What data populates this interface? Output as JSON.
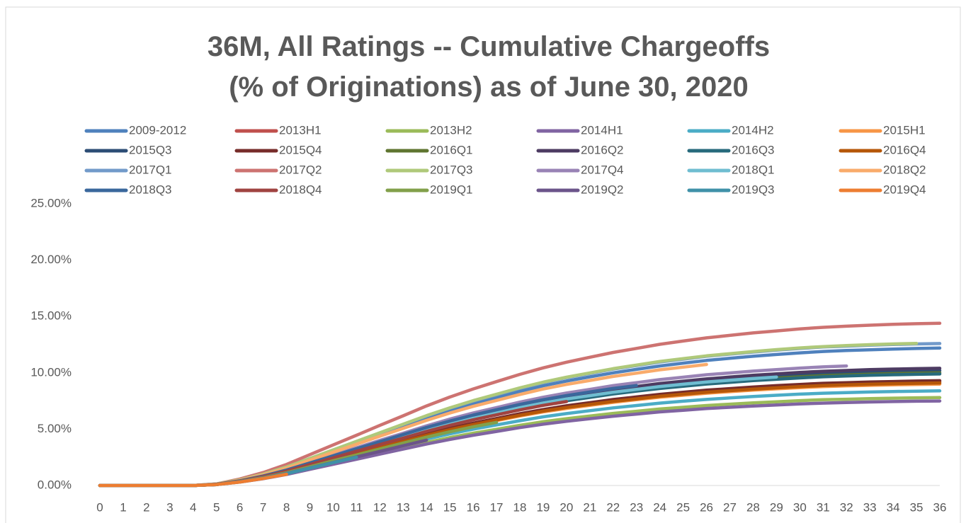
{
  "chart_data": {
    "type": "line",
    "title": "36M, All Ratings -- Cumulative Chargeoffs\n(% of Originations) as of June 30, 2020",
    "x": [
      0,
      1,
      2,
      3,
      4,
      5,
      6,
      7,
      8,
      9,
      10,
      11,
      12,
      13,
      14,
      15,
      16,
      17,
      18,
      19,
      20,
      21,
      22,
      23,
      24,
      25,
      26,
      27,
      28,
      29,
      30,
      31,
      32,
      33,
      34,
      35,
      36
    ],
    "xlim": [
      0,
      36
    ],
    "xticks": [
      0,
      1,
      2,
      3,
      4,
      5,
      6,
      7,
      8,
      9,
      10,
      11,
      12,
      13,
      14,
      15,
      16,
      17,
      18,
      19,
      20,
      21,
      22,
      23,
      24,
      25,
      26,
      27,
      28,
      29,
      30,
      31,
      32,
      33,
      34,
      35,
      36
    ],
    "ylim": [
      0,
      25
    ],
    "yticks": [
      {
        "value": 0,
        "label": "0.00%"
      },
      {
        "value": 5,
        "label": "5.00%"
      },
      {
        "value": 10,
        "label": "10.00%"
      },
      {
        "value": 15,
        "label": "15.00%"
      },
      {
        "value": 20,
        "label": "20.00%"
      },
      {
        "value": 25,
        "label": "25.00%"
      }
    ],
    "grid": false,
    "legend": "top",
    "series": [
      {
        "name": "2009-2012",
        "color": "#4F81BD",
        "values": [
          0,
          0,
          0,
          0,
          0,
          0.12,
          0.49,
          0.98,
          1.59,
          2.32,
          3.05,
          3.78,
          4.51,
          5.25,
          5.98,
          6.65,
          7.26,
          7.81,
          8.36,
          8.85,
          9.27,
          9.64,
          10.0,
          10.31,
          10.61,
          10.86,
          11.1,
          11.29,
          11.47,
          11.63,
          11.77,
          11.9,
          11.98,
          12.05,
          12.11,
          12.16,
          12.2
        ]
      },
      {
        "name": "2013H1",
        "color": "#C0504D",
        "values": [
          0,
          0,
          0,
          0,
          0,
          0.09,
          0.37,
          0.74,
          1.2,
          1.75,
          2.3,
          2.85,
          3.4,
          3.96,
          4.51,
          5.01,
          5.47,
          5.89,
          6.3,
          6.67,
          6.99,
          7.27,
          7.54,
          7.77,
          8.0,
          8.19,
          8.37,
          8.51,
          8.65,
          8.77,
          8.88,
          8.97,
          9.03,
          9.09,
          9.14,
          9.17,
          9.2
        ]
      },
      {
        "name": "2013H2",
        "color": "#9BBB59",
        "values": [
          0,
          0,
          0,
          0,
          0,
          0.08,
          0.31,
          0.62,
          1.01,
          1.48,
          1.95,
          2.42,
          2.89,
          3.35,
          3.82,
          4.25,
          4.64,
          4.99,
          5.34,
          5.66,
          5.93,
          6.16,
          6.4,
          6.59,
          6.79,
          6.94,
          7.1,
          7.22,
          7.33,
          7.43,
          7.53,
          7.61,
          7.66,
          7.71,
          7.75,
          7.78,
          7.8
        ]
      },
      {
        "name": "2014H1",
        "color": "#8064A2",
        "values": [
          0,
          0,
          0,
          0,
          0,
          0.08,
          0.3,
          0.6,
          0.98,
          1.43,
          1.88,
          2.33,
          2.78,
          3.23,
          3.68,
          4.09,
          4.46,
          4.8,
          5.14,
          5.44,
          5.7,
          5.93,
          6.15,
          6.34,
          6.53,
          6.68,
          6.83,
          6.94,
          7.05,
          7.15,
          7.24,
          7.31,
          7.37,
          7.41,
          7.45,
          7.48,
          7.5
        ]
      },
      {
        "name": "2014H2",
        "color": "#4BACC6",
        "values": [
          0,
          0,
          0,
          0,
          0,
          0.08,
          0.34,
          0.67,
          1.09,
          1.6,
          2.1,
          2.6,
          3.11,
          3.61,
          4.12,
          4.58,
          5.0,
          5.38,
          5.75,
          6.09,
          6.38,
          6.64,
          6.89,
          7.1,
          7.31,
          7.48,
          7.64,
          7.77,
          7.9,
          8.01,
          8.11,
          8.19,
          8.25,
          8.3,
          8.34,
          8.37,
          8.4
        ]
      },
      {
        "name": "2015H1",
        "color": "#F79646",
        "values": [
          0,
          0,
          0,
          0,
          0,
          0.09,
          0.36,
          0.72,
          1.17,
          1.71,
          2.25,
          2.79,
          3.33,
          3.87,
          4.41,
          4.91,
          5.36,
          5.76,
          6.17,
          6.53,
          6.84,
          7.11,
          7.38,
          7.61,
          7.83,
          8.01,
          8.19,
          8.33,
          8.46,
          8.58,
          8.69,
          8.78,
          8.84,
          8.89,
          8.94,
          8.97,
          9.0
        ]
      },
      {
        "name": "2015Q3",
        "color": "#2C4D75",
        "values": [
          0,
          0,
          0,
          0,
          0,
          0.1,
          0.41,
          0.82,
          1.33,
          1.94,
          2.55,
          3.16,
          3.77,
          4.39,
          5.0,
          5.56,
          6.07,
          6.53,
          6.99,
          7.4,
          7.75,
          8.06,
          8.36,
          8.62,
          8.87,
          9.08,
          9.28,
          9.44,
          9.59,
          9.72,
          9.84,
          9.95,
          10.02,
          10.08,
          10.13,
          10.17,
          10.2
        ]
      },
      {
        "name": "2015Q4",
        "color": "#772C2A",
        "values": [
          0,
          0,
          0,
          0,
          0,
          0.09,
          0.37,
          0.74,
          1.21,
          1.77,
          2.33,
          2.88,
          3.44,
          4.0,
          4.56,
          5.07,
          5.53,
          5.95,
          6.37,
          6.74,
          7.07,
          7.35,
          7.63,
          7.86,
          8.09,
          8.28,
          8.46,
          8.6,
          8.74,
          8.86,
          8.97,
          9.07,
          9.13,
          9.19,
          9.23,
          9.27,
          9.3
        ]
      },
      {
        "name": "2016Q1",
        "color": "#5F7530",
        "values": [
          0,
          0,
          0,
          0,
          0,
          0.1,
          0.4,
          0.8,
          1.3,
          1.9,
          2.5,
          3.1,
          3.7,
          4.3,
          4.9,
          5.45,
          5.95,
          6.4,
          6.85,
          7.25,
          7.6,
          7.9,
          8.2,
          8.45,
          8.7,
          8.9,
          9.1,
          9.25,
          9.4,
          9.53,
          9.65,
          9.75,
          9.82,
          9.88,
          9.93,
          9.97,
          10.0
        ]
      },
      {
        "name": "2016Q2",
        "color": "#4D3B62",
        "values": [
          0,
          0,
          0,
          0,
          0,
          0.1,
          0.42,
          0.83,
          1.35,
          1.98,
          2.6,
          3.22,
          3.85,
          4.47,
          5.1,
          5.67,
          6.19,
          6.66,
          7.12,
          7.54,
          7.9,
          8.22,
          8.53,
          8.79,
          9.05,
          9.26,
          9.46,
          9.62,
          9.78,
          9.91,
          10.04,
          10.14,
          10.21,
          10.28,
          10.33,
          10.37,
          10.4
        ]
      },
      {
        "name": "2016Q3",
        "color": "#276A7C",
        "values": [
          0,
          0,
          0,
          0,
          0,
          0.1,
          0.4,
          0.79,
          1.29,
          1.88,
          2.48,
          3.07,
          3.66,
          4.26,
          4.85,
          5.4,
          5.89,
          6.34,
          6.78,
          7.18,
          7.52,
          7.82,
          8.12,
          8.37,
          8.61,
          8.81,
          9.01,
          9.16,
          9.31,
          9.43,
          9.55,
          9.65,
          9.72,
          9.78,
          9.83,
          9.87,
          9.9
        ]
      },
      {
        "name": "2016Q4",
        "color": "#B65708",
        "values": [
          0,
          0,
          0,
          0,
          0,
          0.09,
          0.36,
          0.73,
          1.18,
          1.73,
          2.28,
          2.82,
          3.37,
          3.91,
          4.46,
          4.96,
          5.41,
          5.82,
          6.23,
          6.6,
          6.92,
          7.19,
          7.46,
          7.69,
          7.92,
          8.1,
          8.28,
          8.42,
          8.55,
          8.67,
          8.78,
          8.87,
          8.94,
          8.99,
          9.04,
          9.07,
          9.1
        ]
      },
      {
        "name": "2017Q1",
        "color": "#729ACA",
        "values": [
          0,
          0,
          0,
          0,
          0,
          0.13,
          0.5,
          1.01,
          1.64,
          2.39,
          3.15,
          3.91,
          4.66,
          5.42,
          6.17,
          6.87,
          7.5,
          8.06,
          8.63,
          9.14,
          9.58,
          9.95,
          10.33,
          10.65,
          10.96,
          11.21,
          11.47,
          11.66,
          11.84,
          12.01,
          12.16,
          12.29,
          12.37,
          12.45,
          12.51,
          12.56,
          12.6
        ]
      },
      {
        "name": "2017Q2",
        "color": "#CD7371",
        "values": [
          0,
          0,
          0,
          0,
          0,
          0.14,
          0.58,
          1.15,
          1.87,
          2.74,
          3.6,
          4.46,
          5.33,
          6.19,
          7.06,
          7.85,
          8.57,
          9.22,
          9.86,
          10.44,
          10.94,
          11.38,
          11.81,
          12.17,
          12.53,
          12.82,
          13.1,
          13.32,
          13.54,
          13.72,
          13.9,
          14.04,
          14.14,
          14.23,
          14.3,
          14.36,
          14.4
        ]
      },
      {
        "name": "2017Q3",
        "color": "#AFC97A",
        "values": [
          0,
          0,
          0,
          0,
          0,
          0.13,
          0.51,
          1.01,
          1.64,
          2.4,
          3.16,
          3.92,
          4.68,
          5.44,
          6.2,
          6.89,
          7.53,
          8.1,
          8.67,
          9.17,
          9.61,
          9.99,
          10.37,
          10.69,
          11.01,
          11.26,
          11.51,
          11.7,
          11.89,
          12.06,
          12.21,
          12.33,
          12.42,
          12.5,
          12.56,
          12.61,
          null
        ]
      },
      {
        "name": "2017Q4",
        "color": "#9983B5",
        "values": [
          0,
          0,
          0,
          0,
          0,
          0.11,
          0.43,
          0.86,
          1.4,
          2.05,
          2.7,
          3.35,
          4.0,
          4.64,
          5.29,
          5.89,
          6.43,
          6.91,
          7.4,
          7.83,
          8.21,
          8.53,
          8.86,
          9.13,
          9.4,
          9.61,
          9.83,
          9.99,
          10.15,
          10.29,
          10.42,
          10.53,
          10.61,
          null,
          null,
          null,
          null
        ]
      },
      {
        "name": "2018Q1",
        "color": "#6FBDD1",
        "values": [
          0,
          0,
          0,
          0,
          0,
          0.1,
          0.4,
          0.81,
          1.31,
          1.92,
          2.53,
          3.13,
          3.74,
          4.34,
          4.95,
          5.5,
          6.01,
          6.46,
          6.92,
          7.32,
          7.68,
          7.98,
          8.28,
          8.53,
          8.79,
          8.99,
          9.19,
          9.34,
          9.49,
          9.63,
          null,
          null,
          null,
          null,
          null,
          null,
          null
        ]
      },
      {
        "name": "2018Q2",
        "color": "#F9AB6B",
        "values": [
          0,
          0,
          0,
          0,
          0,
          0.12,
          0.47,
          0.94,
          1.53,
          2.24,
          2.95,
          3.66,
          4.37,
          5.07,
          5.78,
          6.43,
          7.02,
          7.55,
          8.08,
          8.56,
          8.97,
          9.32,
          9.68,
          9.97,
          10.27,
          10.5,
          10.74,
          null,
          null,
          null,
          null,
          null,
          null,
          null,
          null,
          null,
          null
        ]
      },
      {
        "name": "2018Q3",
        "color": "#3A679C",
        "values": [
          0,
          0,
          0,
          0,
          0,
          0.11,
          0.42,
          0.84,
          1.37,
          2.0,
          2.63,
          3.26,
          3.89,
          4.52,
          5.15,
          5.72,
          6.25,
          6.72,
          7.19,
          7.61,
          7.98,
          8.3,
          8.61,
          8.87,
          null,
          null,
          null,
          null,
          null,
          null,
          null,
          null,
          null,
          null,
          null,
          null,
          null
        ]
      },
      {
        "name": "2018Q4",
        "color": "#A04340",
        "values": [
          0,
          0,
          0,
          0,
          0,
          0.1,
          0.39,
          0.78,
          1.27,
          1.86,
          2.45,
          3.04,
          3.63,
          4.21,
          4.8,
          5.34,
          5.83,
          6.27,
          6.71,
          7.11,
          7.45,
          null,
          null,
          null,
          null,
          null,
          null,
          null,
          null,
          null,
          null,
          null,
          null,
          null,
          null,
          null,
          null
        ]
      },
      {
        "name": "2019Q1",
        "color": "#82A04A",
        "values": [
          0,
          0,
          0,
          0,
          0,
          0.09,
          0.35,
          0.7,
          1.14,
          1.66,
          2.19,
          2.71,
          3.24,
          3.76,
          4.29,
          4.77,
          5.21,
          5.6,
          null,
          null,
          null,
          null,
          null,
          null,
          null,
          null,
          null,
          null,
          null,
          null,
          null,
          null,
          null,
          null,
          null,
          null,
          null
        ]
      },
      {
        "name": "2019Q2",
        "color": "#6B548A",
        "values": [
          0,
          0,
          0,
          0,
          0,
          0.08,
          0.33,
          0.66,
          1.07,
          1.56,
          2.05,
          2.54,
          3.03,
          3.53,
          4.02,
          null,
          null,
          null,
          null,
          null,
          null,
          null,
          null,
          null,
          null,
          null,
          null,
          null,
          null,
          null,
          null,
          null,
          null,
          null,
          null,
          null,
          null
        ]
      },
      {
        "name": "2019Q3",
        "color": "#3F91A8",
        "values": [
          0,
          0,
          0,
          0,
          0,
          0.08,
          0.32,
          0.65,
          1.05,
          1.54,
          2.03,
          2.51,
          null,
          null,
          null,
          null,
          null,
          null,
          null,
          null,
          null,
          null,
          null,
          null,
          null,
          null,
          null,
          null,
          null,
          null,
          null,
          null,
          null,
          null,
          null,
          null,
          null
        ]
      },
      {
        "name": "2019Q4",
        "color": "#ED7D31",
        "values": [
          0,
          0,
          0,
          0,
          0,
          0.08,
          0.31,
          0.62,
          1.0,
          null,
          null,
          null,
          null,
          null,
          null,
          null,
          null,
          null,
          null,
          null,
          null,
          null,
          null,
          null,
          null,
          null,
          null,
          null,
          null,
          null,
          null,
          null,
          null,
          null,
          null,
          null,
          null
        ]
      }
    ]
  }
}
